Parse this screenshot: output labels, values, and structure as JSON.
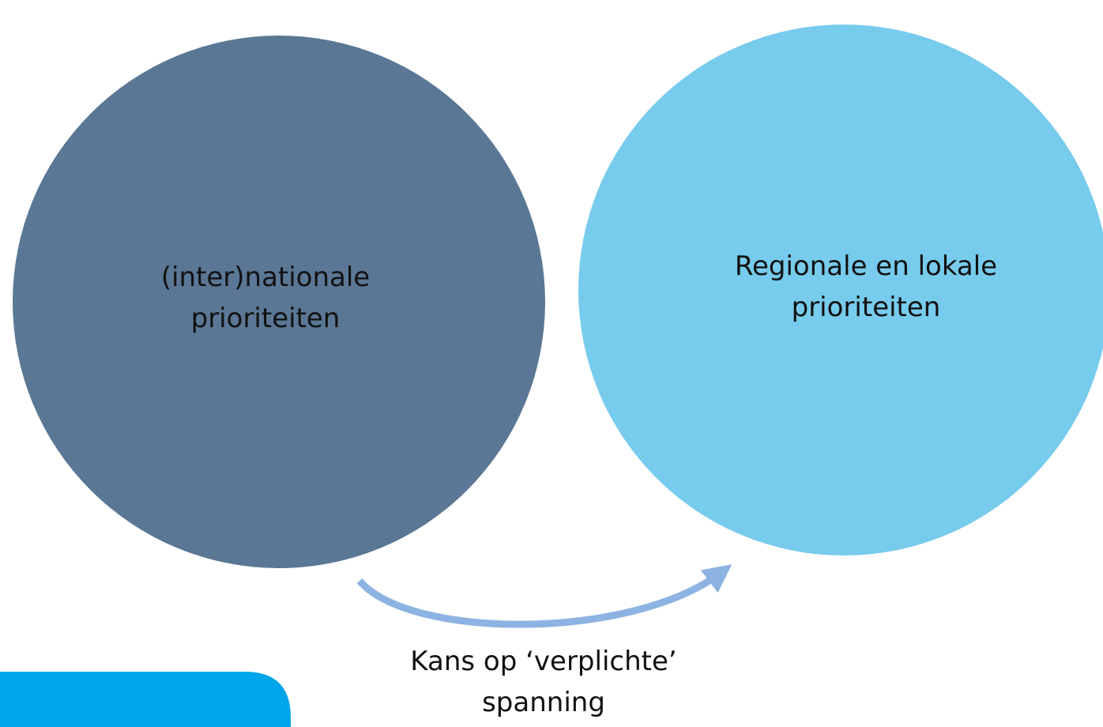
{
  "nodes": [
    {
      "label": [
        "(inter)nationale",
        "prioriteiten"
      ]
    },
    {
      "label": [
        "Regionale en lokale",
        "prioriteiten"
      ]
    }
  ],
  "edge": {
    "label": [
      "Kans op ‘verplichte’",
      "spanning"
    ]
  }
}
